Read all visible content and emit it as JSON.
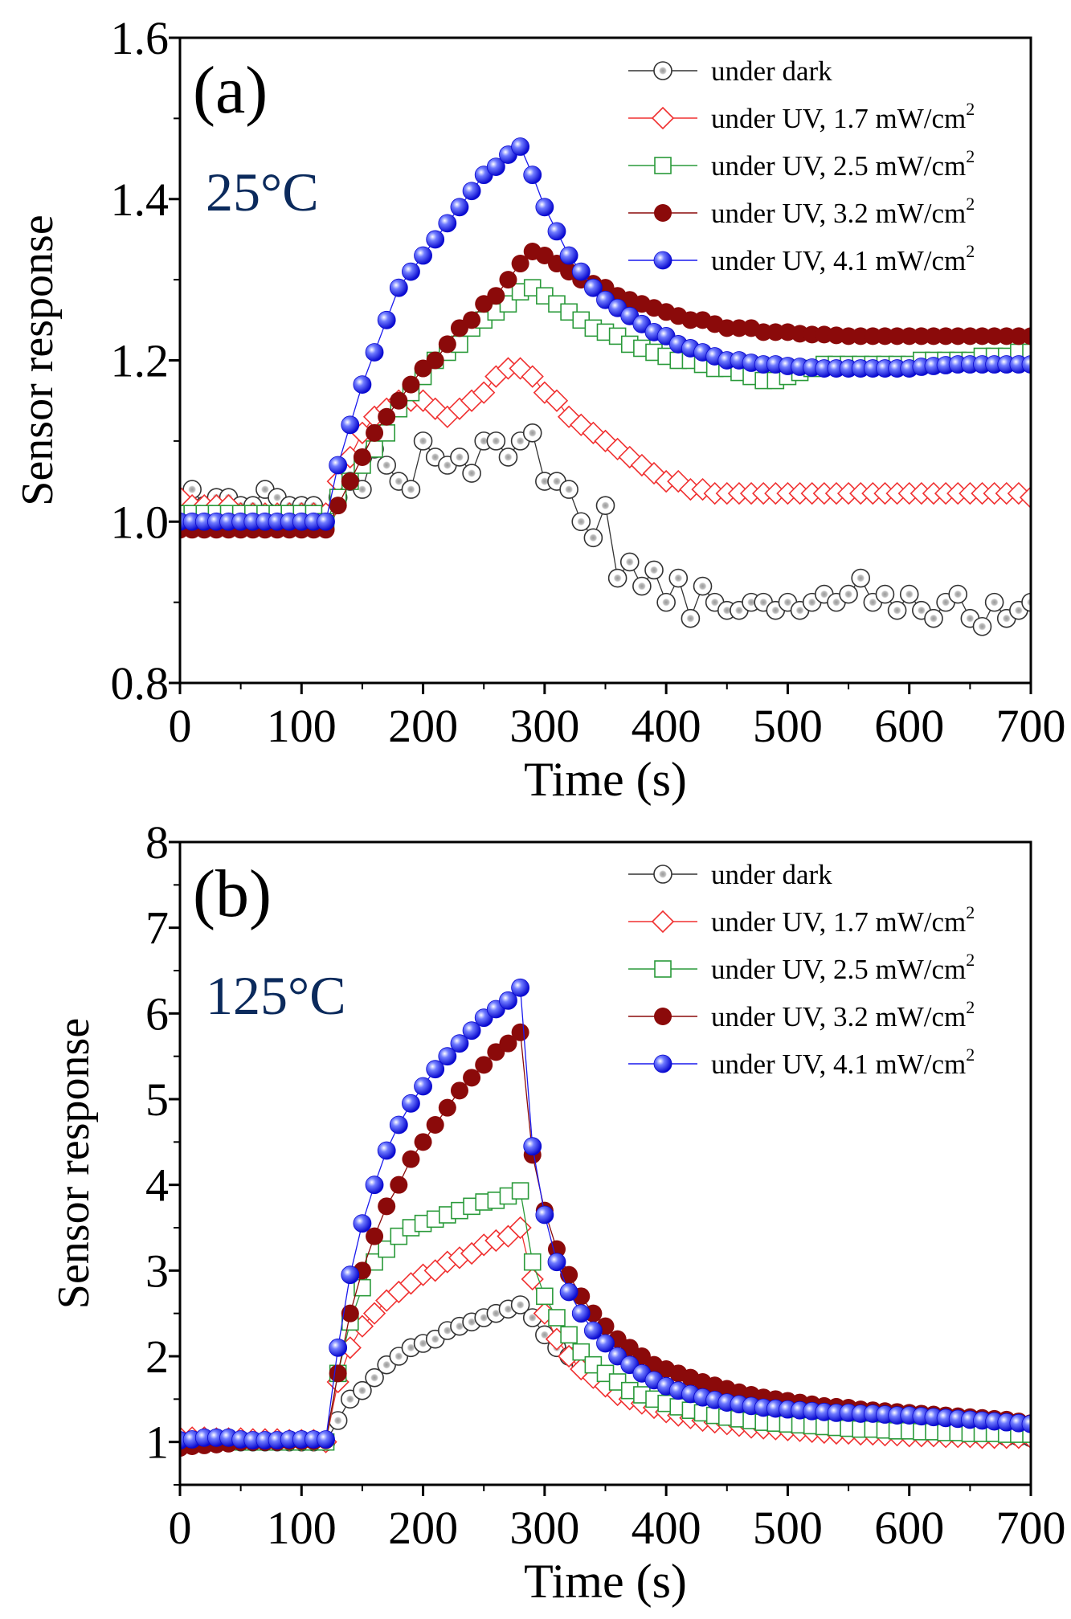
{
  "chart_data": [
    {
      "type": "line",
      "panel_label": "(a)",
      "annotation": "25°C",
      "xlabel": "Time (s)",
      "ylabel": "Sensor response",
      "xlim": [
        0,
        700
      ],
      "ylim": [
        0.8,
        1.6
      ],
      "xticks": [
        "0",
        "100",
        "200",
        "300",
        "400",
        "500",
        "600",
        "700"
      ],
      "yticks": [
        "0.8",
        "1.0",
        "1.2",
        "1.4",
        "1.6"
      ],
      "ytick_values": [
        0.8,
        1.0,
        1.2,
        1.4,
        1.6
      ],
      "grid": false,
      "legend_position": "top-right",
      "x": [
        0,
        10,
        20,
        30,
        40,
        50,
        60,
        70,
        80,
        90,
        100,
        110,
        120,
        130,
        140,
        150,
        160,
        170,
        180,
        190,
        200,
        210,
        220,
        230,
        240,
        250,
        260,
        270,
        280,
        290,
        300,
        310,
        320,
        330,
        340,
        350,
        360,
        370,
        380,
        390,
        400,
        410,
        420,
        430,
        440,
        450,
        460,
        470,
        480,
        490,
        500,
        510,
        520,
        530,
        540,
        550,
        560,
        570,
        580,
        590,
        600,
        610,
        620,
        630,
        640,
        650,
        660,
        670,
        680,
        690,
        700
      ],
      "series": [
        {
          "name": "under dark",
          "marker": "sphere-open",
          "color": "#333333",
          "values": [
            1.03,
            1.04,
            1.02,
            1.03,
            1.03,
            1.02,
            1.02,
            1.04,
            1.03,
            1.02,
            1.02,
            1.02,
            1.01,
            1.03,
            1.05,
            1.04,
            1.09,
            1.07,
            1.05,
            1.04,
            1.1,
            1.08,
            1.07,
            1.08,
            1.06,
            1.1,
            1.1,
            1.08,
            1.1,
            1.11,
            1.05,
            1.05,
            1.04,
            1.0,
            0.98,
            1.02,
            0.93,
            0.95,
            0.92,
            0.94,
            0.9,
            0.93,
            0.88,
            0.92,
            0.9,
            0.89,
            0.89,
            0.9,
            0.9,
            0.89,
            0.9,
            0.89,
            0.9,
            0.91,
            0.9,
            0.91,
            0.93,
            0.9,
            0.91,
            0.89,
            0.91,
            0.89,
            0.88,
            0.9,
            0.91,
            0.88,
            0.87,
            0.9,
            0.88,
            0.89,
            0.9
          ]
        },
        {
          "name": "under UV, 1.7 mW/cm",
          "sup": "2",
          "marker": "diamond",
          "color": "#f03030",
          "values": [
            1.03,
            1.02,
            1.02,
            1.02,
            1.02,
            1.01,
            1.01,
            1.01,
            1.01,
            1.01,
            1.01,
            1.01,
            1.01,
            1.05,
            1.08,
            1.11,
            1.13,
            1.14,
            1.15,
            1.15,
            1.15,
            1.14,
            1.13,
            1.14,
            1.15,
            1.16,
            1.18,
            1.19,
            1.19,
            1.18,
            1.16,
            1.15,
            1.13,
            1.12,
            1.11,
            1.1,
            1.09,
            1.08,
            1.07,
            1.06,
            1.05,
            1.05,
            1.04,
            1.04,
            1.035,
            1.035,
            1.035,
            1.035,
            1.035,
            1.035,
            1.035,
            1.035,
            1.035,
            1.035,
            1.035,
            1.035,
            1.035,
            1.035,
            1.035,
            1.035,
            1.035,
            1.035,
            1.035,
            1.035,
            1.035,
            1.035,
            1.035,
            1.035,
            1.035,
            1.035,
            1.03
          ]
        },
        {
          "name": "under UV, 2.5 mW/cm",
          "sup": "2",
          "marker": "square",
          "color": "#2a9a3a",
          "values": [
            1.01,
            1.01,
            1.01,
            1.01,
            1.01,
            1.01,
            1.01,
            1.01,
            1.01,
            1.01,
            1.01,
            1.01,
            1.0,
            1.03,
            1.05,
            1.07,
            1.09,
            1.11,
            1.14,
            1.16,
            1.18,
            1.2,
            1.21,
            1.22,
            1.24,
            1.25,
            1.26,
            1.27,
            1.285,
            1.29,
            1.28,
            1.27,
            1.26,
            1.25,
            1.24,
            1.235,
            1.23,
            1.22,
            1.215,
            1.21,
            1.205,
            1.2,
            1.2,
            1.195,
            1.19,
            1.19,
            1.185,
            1.18,
            1.175,
            1.175,
            1.18,
            1.185,
            1.19,
            1.195,
            1.195,
            1.195,
            1.195,
            1.195,
            1.195,
            1.195,
            1.195,
            1.2,
            1.2,
            1.2,
            1.2,
            1.2,
            1.205,
            1.205,
            1.205,
            1.21,
            1.21
          ]
        },
        {
          "name": "under UV, 3.2 mW/cm",
          "sup": "2",
          "marker": "filled",
          "color": "#8b0a0a",
          "values": [
            0.99,
            0.99,
            0.99,
            0.99,
            0.99,
            0.99,
            0.99,
            0.99,
            0.99,
            0.99,
            0.99,
            0.99,
            0.99,
            1.02,
            1.05,
            1.08,
            1.11,
            1.13,
            1.15,
            1.17,
            1.19,
            1.2,
            1.22,
            1.24,
            1.25,
            1.27,
            1.28,
            1.3,
            1.32,
            1.335,
            1.33,
            1.32,
            1.31,
            1.3,
            1.295,
            1.29,
            1.28,
            1.275,
            1.27,
            1.265,
            1.26,
            1.255,
            1.25,
            1.25,
            1.245,
            1.24,
            1.24,
            1.24,
            1.235,
            1.235,
            1.235,
            1.233,
            1.232,
            1.232,
            1.231,
            1.23,
            1.23,
            1.23,
            1.23,
            1.23,
            1.23,
            1.23,
            1.23,
            1.23,
            1.23,
            1.23,
            1.23,
            1.23,
            1.23,
            1.23,
            1.23
          ]
        },
        {
          "name": "under UV, 4.1 mW/cm",
          "sup": "2",
          "marker": "sphere-blue",
          "color": "#1a1aee",
          "values": [
            1.0,
            1.0,
            1.0,
            1.0,
            1.0,
            1.0,
            1.0,
            1.0,
            1.0,
            1.0,
            1.0,
            1.0,
            1.0,
            1.07,
            1.12,
            1.17,
            1.21,
            1.25,
            1.29,
            1.31,
            1.33,
            1.35,
            1.37,
            1.39,
            1.41,
            1.43,
            1.44,
            1.455,
            1.465,
            1.43,
            1.39,
            1.36,
            1.33,
            1.31,
            1.29,
            1.275,
            1.265,
            1.255,
            1.245,
            1.235,
            1.23,
            1.22,
            1.215,
            1.21,
            1.205,
            1.2,
            1.2,
            1.197,
            1.195,
            1.195,
            1.193,
            1.192,
            1.191,
            1.19,
            1.19,
            1.19,
            1.19,
            1.19,
            1.19,
            1.19,
            1.19,
            1.192,
            1.193,
            1.194,
            1.195,
            1.195,
            1.195,
            1.195,
            1.195,
            1.195,
            1.195
          ]
        }
      ]
    },
    {
      "type": "line",
      "panel_label": "(b)",
      "annotation": "125°C",
      "xlabel": "Time (s)",
      "ylabel": "Sensor response",
      "xlim": [
        0,
        700
      ],
      "ylim": [
        0.5,
        8
      ],
      "xticks": [
        "0",
        "100",
        "200",
        "300",
        "400",
        "500",
        "600",
        "700"
      ],
      "yticks": [
        "1",
        "2",
        "3",
        "4",
        "5",
        "6",
        "7",
        "8"
      ],
      "ytick_values": [
        1,
        2,
        3,
        4,
        5,
        6,
        7,
        8
      ],
      "grid": false,
      "legend_position": "top-right",
      "x": [
        0,
        10,
        20,
        30,
        40,
        50,
        60,
        70,
        80,
        90,
        100,
        110,
        120,
        130,
        140,
        150,
        160,
        170,
        180,
        190,
        200,
        210,
        220,
        230,
        240,
        250,
        260,
        270,
        280,
        290,
        300,
        310,
        320,
        330,
        340,
        350,
        360,
        370,
        380,
        390,
        400,
        410,
        420,
        430,
        440,
        450,
        460,
        470,
        480,
        490,
        500,
        510,
        520,
        530,
        540,
        550,
        560,
        570,
        580,
        590,
        600,
        610,
        620,
        630,
        640,
        650,
        660,
        670,
        680,
        690,
        700
      ],
      "series": [
        {
          "name": "under dark",
          "marker": "sphere-open",
          "color": "#333333",
          "values": [
            1.0,
            1.0,
            1.0,
            1.0,
            1.0,
            1.0,
            1.0,
            1.0,
            1.0,
            1.0,
            1.0,
            1.0,
            1.0,
            1.25,
            1.5,
            1.6,
            1.75,
            1.9,
            2.0,
            2.1,
            2.15,
            2.2,
            2.3,
            2.35,
            2.4,
            2.45,
            2.5,
            2.55,
            2.6,
            2.45,
            2.25,
            2.1,
            2.0,
            1.9,
            1.8,
            1.7,
            1.6,
            1.55,
            1.5,
            1.45,
            1.4,
            1.37,
            1.34,
            1.31,
            1.29,
            1.27,
            1.25,
            1.23,
            1.21,
            1.2,
            1.19,
            1.18,
            1.17,
            1.16,
            1.15,
            1.14,
            1.13,
            1.12,
            1.12,
            1.11,
            1.1,
            1.1,
            1.09,
            1.09,
            1.08,
            1.08,
            1.07,
            1.07,
            1.06,
            1.06,
            1.05
          ]
        },
        {
          "name": "under UV, 1.7 mW/cm",
          "sup": "2",
          "marker": "diamond",
          "color": "#f03030",
          "values": [
            1.05,
            1.05,
            1.05,
            1.04,
            1.04,
            1.04,
            1.03,
            1.03,
            1.03,
            1.02,
            1.02,
            1.02,
            1.0,
            1.7,
            2.1,
            2.35,
            2.5,
            2.65,
            2.75,
            2.85,
            2.95,
            3.0,
            3.1,
            3.15,
            3.2,
            3.3,
            3.35,
            3.4,
            3.5,
            2.9,
            2.5,
            2.2,
            2.0,
            1.85,
            1.75,
            1.65,
            1.55,
            1.5,
            1.45,
            1.4,
            1.35,
            1.31,
            1.28,
            1.25,
            1.23,
            1.21,
            1.19,
            1.17,
            1.16,
            1.15,
            1.14,
            1.13,
            1.12,
            1.11,
            1.1,
            1.1,
            1.09,
            1.09,
            1.08,
            1.08,
            1.07,
            1.07,
            1.07,
            1.06,
            1.06,
            1.06,
            1.05,
            1.05,
            1.05,
            1.05,
            1.05
          ]
        },
        {
          "name": "under UV, 2.5 mW/cm",
          "sup": "2",
          "marker": "square",
          "color": "#2a9a3a",
          "values": [
            1.0,
            1.0,
            1.0,
            1.0,
            1.0,
            1.0,
            1.0,
            1.0,
            1.0,
            1.0,
            1.0,
            1.0,
            1.0,
            1.8,
            2.4,
            2.8,
            3.1,
            3.25,
            3.4,
            3.5,
            3.55,
            3.6,
            3.65,
            3.7,
            3.75,
            3.8,
            3.82,
            3.87,
            3.93,
            3.1,
            2.7,
            2.45,
            2.25,
            2.05,
            1.9,
            1.8,
            1.7,
            1.6,
            1.55,
            1.5,
            1.45,
            1.41,
            1.37,
            1.34,
            1.31,
            1.29,
            1.27,
            1.25,
            1.23,
            1.22,
            1.21,
            1.2,
            1.19,
            1.18,
            1.17,
            1.16,
            1.15,
            1.15,
            1.14,
            1.13,
            1.13,
            1.12,
            1.12,
            1.11,
            1.11,
            1.1,
            1.1,
            1.1,
            1.09,
            1.09,
            1.09
          ]
        },
        {
          "name": "under UV, 3.2 mW/cm",
          "sup": "2",
          "marker": "filled",
          "color": "#8b0a0a",
          "values": [
            0.93,
            0.95,
            0.96,
            0.97,
            0.98,
            1.0,
            1.0,
            1.0,
            1.0,
            1.01,
            1.01,
            1.01,
            1.02,
            1.8,
            2.5,
            3.0,
            3.4,
            3.75,
            4.0,
            4.3,
            4.5,
            4.7,
            4.9,
            5.1,
            5.25,
            5.4,
            5.55,
            5.65,
            5.78,
            4.35,
            3.7,
            3.25,
            2.95,
            2.7,
            2.5,
            2.35,
            2.2,
            2.1,
            2.0,
            1.9,
            1.85,
            1.8,
            1.75,
            1.7,
            1.66,
            1.62,
            1.58,
            1.55,
            1.52,
            1.5,
            1.48,
            1.46,
            1.44,
            1.42,
            1.41,
            1.4,
            1.38,
            1.37,
            1.36,
            1.35,
            1.34,
            1.33,
            1.32,
            1.31,
            1.3,
            1.29,
            1.28,
            1.27,
            1.26,
            1.24,
            1.22
          ]
        },
        {
          "name": "under UV, 4.1 mW/cm",
          "sup": "2",
          "marker": "sphere-blue",
          "color": "#1a1aee",
          "values": [
            1.02,
            1.03,
            1.05,
            1.05,
            1.05,
            1.03,
            1.02,
            1.02,
            1.02,
            1.03,
            1.03,
            1.03,
            1.03,
            2.1,
            2.95,
            3.55,
            4.0,
            4.4,
            4.7,
            4.95,
            5.15,
            5.35,
            5.5,
            5.65,
            5.8,
            5.95,
            6.05,
            6.15,
            6.3,
            4.45,
            3.65,
            3.1,
            2.75,
            2.5,
            2.3,
            2.15,
            2.0,
            1.9,
            1.8,
            1.72,
            1.65,
            1.6,
            1.56,
            1.52,
            1.49,
            1.46,
            1.44,
            1.42,
            1.4,
            1.39,
            1.38,
            1.37,
            1.36,
            1.35,
            1.34,
            1.34,
            1.33,
            1.33,
            1.32,
            1.31,
            1.31,
            1.3,
            1.29,
            1.28,
            1.27,
            1.26,
            1.25,
            1.24,
            1.23,
            1.22,
            1.21
          ]
        }
      ]
    }
  ]
}
